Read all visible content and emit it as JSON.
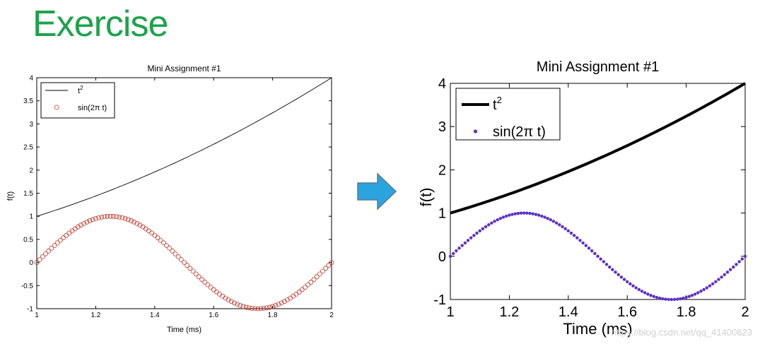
{
  "slide": {
    "title": "Exercise",
    "arrow_color": "#29a4de",
    "watermark": "https://blog.csdn.net/qq_41400623"
  },
  "chart_data": [
    {
      "type": "line",
      "title": "Mini Assignment #1",
      "xlabel": "Time (ms)",
      "ylabel": "f(t)",
      "xlim": [
        1,
        2
      ],
      "ylim": [
        -1,
        4
      ],
      "xticks": [
        "1",
        "1.2",
        "1.4",
        "1.6",
        "1.8",
        "2"
      ],
      "yticks": [
        "-1",
        "-0.5",
        "0",
        "0.5",
        "1",
        "1.5",
        "2",
        "2.5",
        "3",
        "3.5",
        "4"
      ],
      "grid": false,
      "legend_position": "top-left",
      "x": {
        "start": 1,
        "end": 2,
        "count": 101
      },
      "series": [
        {
          "name": "t2",
          "formula": "t^2",
          "style": "line",
          "color": "#000000"
        },
        {
          "name": "sin(2π t)",
          "formula": "sin(2*pi*t)",
          "style": "open-circle-marker",
          "color": "#c0392b"
        }
      ]
    },
    {
      "type": "line",
      "title": "Mini Assignment #1",
      "xlabel": "Time (ms)",
      "ylabel": "f(t)",
      "xlim": [
        1,
        2
      ],
      "ylim": [
        -1,
        4
      ],
      "xticks": [
        "1",
        "1.2",
        "1.4",
        "1.6",
        "1.8",
        "2"
      ],
      "yticks": [
        "-1",
        "0",
        "1",
        "2",
        "3",
        "4"
      ],
      "grid": false,
      "legend_position": "top-left",
      "x": {
        "start": 1,
        "end": 2,
        "count": 101
      },
      "series": [
        {
          "name": "t2",
          "formula": "t^2",
          "style": "thick-line",
          "color": "#000000"
        },
        {
          "name": "sin(2π t)",
          "formula": "sin(2*pi*t)",
          "style": "dot-marker",
          "color": "#5b2fc9"
        }
      ]
    }
  ]
}
